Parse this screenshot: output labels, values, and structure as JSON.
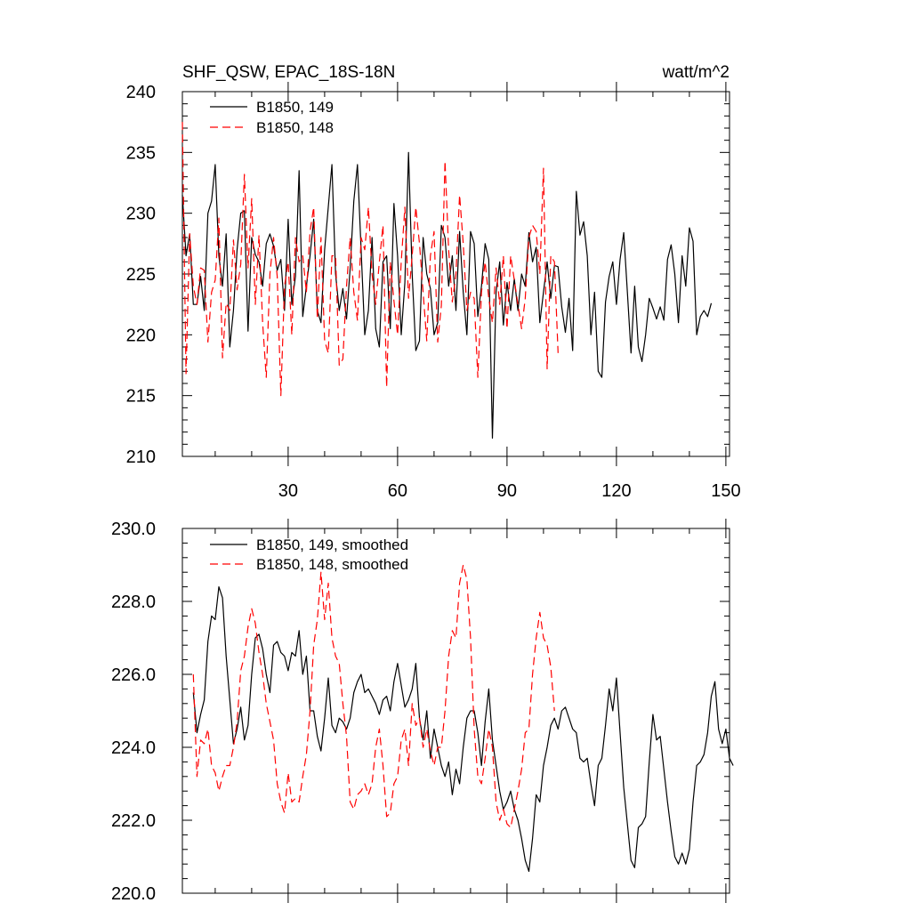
{
  "colors": {
    "series_a": "#000000",
    "series_b": "#ff0000"
  },
  "chart_data": [
    {
      "type": "line",
      "title_left": "SHF_QSW, EPAC_18S-18N",
      "title_right": "watt/m^2",
      "xlabel": "",
      "ylabel": "",
      "xlim": [
        1,
        151
      ],
      "ylim": [
        210,
        240
      ],
      "xticks": [
        30,
        60,
        90,
        120,
        150
      ],
      "yticks": [
        210,
        215,
        220,
        225,
        230,
        235,
        240
      ],
      "ytick_labels": [
        "210",
        "215",
        "220",
        "225",
        "230",
        "235",
        "240"
      ],
      "grid": false,
      "legend_position": "top-left",
      "series": [
        {
          "name": "B1850, 149",
          "style": "solid",
          "color": "#000000",
          "x_start": 1,
          "values": [
            231.5,
            226.5,
            228.3,
            222.5,
            222.5,
            224.8,
            222.0,
            230.0,
            231.0,
            234.0,
            226.5,
            224.0,
            228.3,
            219.0,
            222.0,
            227.0,
            230.0,
            230.2,
            220.3,
            228.0,
            226.6,
            226.0,
            224.0,
            227.5,
            228.3,
            227.3,
            225.3,
            226.2,
            222.0,
            229.5,
            222.5,
            224.8,
            233.5,
            221.5,
            224.0,
            226.5,
            229.5,
            222.0,
            221.0,
            227.0,
            230.5,
            234.0,
            225.0,
            222.0,
            223.8,
            221.3,
            225.5,
            231.0,
            234.0,
            227.0,
            220.0,
            222.0,
            228.0,
            220.5,
            219.0,
            226.0,
            226.5,
            220.5,
            230.8,
            226.5,
            220.0,
            224.3,
            235.0,
            225.0,
            218.7,
            219.5,
            228.0,
            225.0,
            223.8,
            220.0,
            221.0,
            229.0,
            228.0,
            224.0,
            226.5,
            222.0,
            228.5,
            223.5,
            220.0,
            228.5,
            227.5,
            221.5,
            224.0,
            227.5,
            226.2,
            211.5,
            223.5,
            226.0,
            220.8,
            224.3,
            222.0,
            224.6,
            222.0,
            225.0,
            224.0,
            228.4,
            226.0,
            227.2,
            221.0,
            223.5,
            226.0,
            223.0,
            225.7,
            225.6,
            222.3,
            220.2,
            223.0,
            218.7,
            231.8,
            228.2,
            229.3,
            226.5,
            220.0,
            223.5,
            217.0,
            216.5,
            222.7,
            224.8,
            226.0,
            222.5,
            226.2,
            228.4,
            223.5,
            218.5,
            224.0,
            219.0,
            217.8,
            220.0,
            223.0,
            222.2,
            221.3,
            222.3,
            221.2,
            226.2,
            227.4,
            225.0,
            221.0,
            226.5,
            224.0,
            228.8,
            227.7,
            220.0,
            221.5,
            222.0,
            221.5,
            222.6
          ]
        },
        {
          "name": "B1850, 148",
          "style": "dashed",
          "color": "#ff0000",
          "x_start": 1,
          "values": [
            237.5,
            216.8,
            228.3,
            224.0,
            222.5,
            225.5,
            225.3,
            219.4,
            223.5,
            224.5,
            229.6,
            218.1,
            222.6,
            222.0,
            227.8,
            223.7,
            225.8,
            233.2,
            225.5,
            231.2,
            222.5,
            228.2,
            221.0,
            216.5,
            225.0,
            228.0,
            224.8,
            215.0,
            224.0,
            226.0,
            220.0,
            228.0,
            226.0,
            226.5,
            223.5,
            228.5,
            230.5,
            221.3,
            228.0,
            219.5,
            218.5,
            226.5,
            226.5,
            217.5,
            218.0,
            224.0,
            228.0,
            223.5,
            221.2,
            228.0,
            227.0,
            230.5,
            225.0,
            222.5,
            226.0,
            229.0,
            215.7,
            226.0,
            222.8,
            220.0,
            226.0,
            230.5,
            223.0,
            226.5,
            230.5,
            227.5,
            223.5,
            219.5,
            226.5,
            228.5,
            219.4,
            222.4,
            234.3,
            227.0,
            222.7,
            225.0,
            231.5,
            227.5,
            222.0,
            223.5,
            223.0,
            216.5,
            223.5,
            226.0,
            223.0,
            221.0,
            225.5,
            222.5,
            226.5,
            220.5,
            226.5,
            224.5,
            222.5,
            220.5,
            223.0,
            228.0,
            229.0,
            228.5,
            225.0,
            233.7,
            217.2,
            226.5,
            226.0,
            218.5
          ]
        }
      ]
    },
    {
      "type": "line",
      "title_left": "",
      "title_right": "",
      "xlabel": "",
      "ylabel": "",
      "xlim": [
        1,
        151
      ],
      "ylim": [
        220.0,
        230.0
      ],
      "xticks": [
        30,
        60,
        90,
        120,
        150
      ],
      "yticks": [
        220.0,
        222.0,
        224.0,
        226.0,
        228.0,
        230.0
      ],
      "ytick_labels": [
        "220.0",
        "222.0",
        "224.0",
        "226.0",
        "228.0",
        "230.0"
      ],
      "grid": false,
      "legend_position": "top-left",
      "series": [
        {
          "name": "B1850, 149, smoothed",
          "style": "solid",
          "color": "#000000",
          "x_start": 4,
          "values": [
            225.5,
            224.4,
            224.9,
            225.3,
            226.9,
            227.6,
            227.5,
            228.4,
            228.1,
            226.5,
            225.3,
            224.1,
            224.5,
            225.1,
            224.2,
            224.6,
            226.0,
            227.0,
            227.1,
            226.7,
            226.0,
            225.5,
            226.8,
            226.9,
            226.6,
            226.5,
            226.1,
            226.6,
            226.5,
            227.2,
            226.0,
            226.5,
            225.0,
            225.0,
            224.3,
            223.9,
            224.8,
            225.9,
            224.6,
            224.4,
            224.8,
            224.7,
            224.5,
            224.8,
            225.5,
            225.8,
            226.0,
            225.5,
            225.6,
            225.4,
            225.2,
            224.9,
            225.3,
            225.4,
            225.0,
            225.8,
            226.3,
            225.7,
            225.1,
            225.3,
            225.6,
            226.3,
            224.8,
            224.2,
            225.0,
            223.7,
            224.5,
            224.0,
            223.5,
            223.2,
            223.6,
            222.7,
            223.4,
            223.0,
            224.0,
            224.8,
            225.0,
            225.0,
            224.4,
            223.5,
            224.7,
            225.6,
            224.2,
            223.5,
            222.8,
            222.3,
            222.5,
            222.8,
            222.3,
            222.0,
            221.5,
            220.9,
            220.6,
            221.5,
            222.7,
            222.5,
            223.5,
            224.0,
            224.6,
            224.8,
            224.5,
            225.0,
            225.1,
            224.8,
            224.5,
            224.4,
            223.7,
            223.6,
            223.7,
            223.0,
            222.4,
            223.5,
            223.7,
            224.6,
            225.6,
            225.0,
            225.9,
            224.4,
            222.9,
            221.9,
            220.9,
            220.7,
            221.8,
            221.9,
            222.1,
            223.6,
            224.9,
            224.2,
            224.3,
            223.4,
            222.5,
            221.7,
            221.0,
            220.8,
            221.1,
            220.8,
            221.2,
            222.5,
            223.5,
            223.6,
            223.8,
            224.4,
            225.4,
            225.8,
            224.5,
            224.1,
            224.5,
            223.7,
            223.5
          ]
        },
        {
          "name": "B1850, 148, smoothed",
          "style": "dashed",
          "color": "#ff0000",
          "x_start": 4,
          "values": [
            226.0,
            223.2,
            224.2,
            224.1,
            224.5,
            223.5,
            223.3,
            222.8,
            223.2,
            223.5,
            223.5,
            224.0,
            224.7,
            226.1,
            226.5,
            227.3,
            227.8,
            227.4,
            226.6,
            226.0,
            225.2,
            224.7,
            224.2,
            223.0,
            222.5,
            222.2,
            223.3,
            222.5,
            222.6,
            222.5,
            223.2,
            223.8,
            225.0,
            226.8,
            227.5,
            228.8,
            227.5,
            228.5,
            227.0,
            226.5,
            226.3,
            225.2,
            224.3,
            222.5,
            222.3,
            222.7,
            222.8,
            223.0,
            222.7,
            223.0,
            224.0,
            224.5,
            223.5,
            222.1,
            222.2,
            223.0,
            223.2,
            224.2,
            224.5,
            223.5,
            225.2,
            224.6,
            224.8,
            224.0,
            224.5,
            223.9,
            223.5,
            224.0,
            224.0,
            225.0,
            226.5,
            227.2,
            227.0,
            228.5,
            229.0,
            228.6,
            227.0,
            224.5,
            223.2,
            223.0,
            223.7,
            224.5,
            224.0,
            222.5,
            222.0,
            222.3,
            221.9,
            221.8,
            222.3,
            222.8,
            223.4,
            224.4,
            224.5,
            226.0,
            227.0,
            227.7,
            227.0,
            226.8,
            226.2,
            225.0
          ]
        }
      ]
    }
  ]
}
